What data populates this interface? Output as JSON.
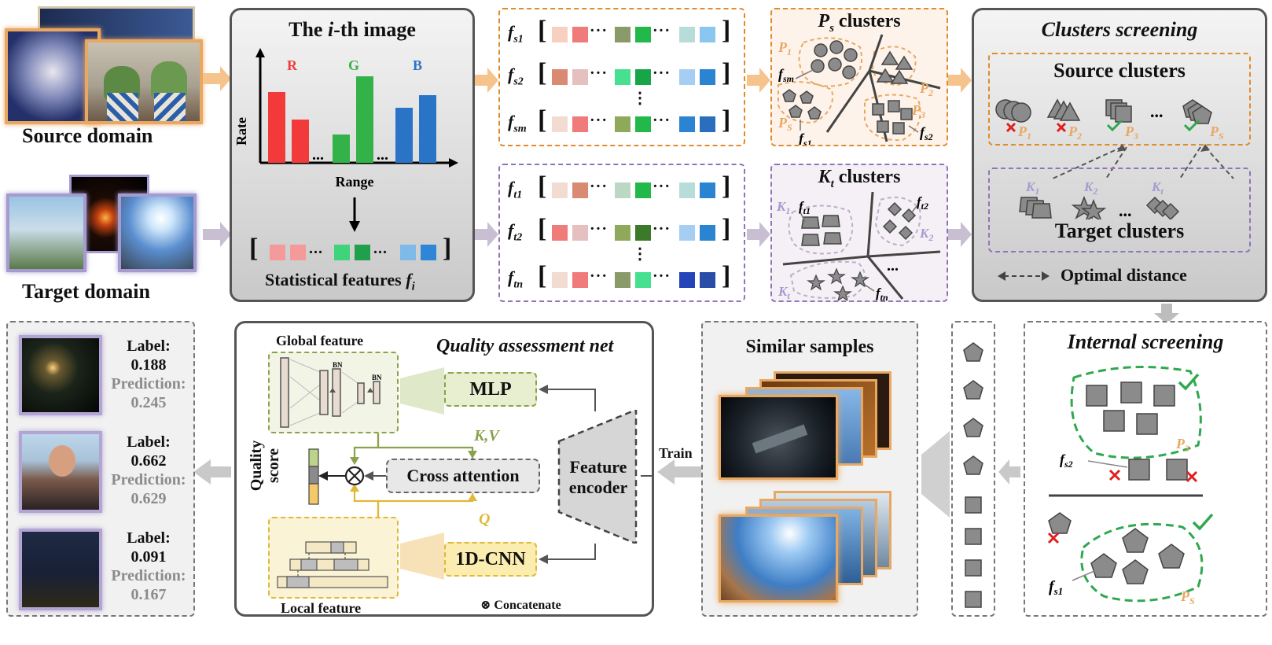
{
  "left": {
    "source_domain": "Source domain",
    "target_domain": "Target domain"
  },
  "histogram_panel": {
    "title_pre": "The ",
    "title_var": "i",
    "title_post": "-th image",
    "axis_y": "Rate",
    "axis_x": "Range",
    "channels": [
      "R",
      "G",
      "B"
    ],
    "dots": "...",
    "stat_label": "Statistical features ",
    "stat_var": "f",
    "stat_sub": "i"
  },
  "source_features": {
    "rows": [
      {
        "label": "f",
        "sub": "s1"
      },
      {
        "label": "f",
        "sub": "s2"
      },
      {
        "label": "f",
        "sub": "sm"
      }
    ],
    "vdots": "⋮"
  },
  "target_features": {
    "rows": [
      {
        "label": "f",
        "sub": "t1"
      },
      {
        "label": "f",
        "sub": "t2"
      },
      {
        "label": "f",
        "sub": "tn"
      }
    ],
    "vdots": "⋮"
  },
  "ps_clusters": {
    "title_var": "P",
    "title_sub": "s",
    "title_post": " clusters",
    "labels": {
      "p1": "P",
      "p1s": "1",
      "p2": "P",
      "p2s": "2",
      "p3": "P",
      "p3s": "3",
      "ps": "P",
      "pss": "S",
      "fsm": "f",
      "fsms": "sm",
      "fs1": "f",
      "fs1s": "s1",
      "fs2": "f",
      "fs2s": "s2"
    }
  },
  "kt_clusters": {
    "title_var": "K",
    "title_sub": "t",
    "title_post": " clusters",
    "labels": {
      "k1": "K",
      "k1s": "1",
      "k2": "K",
      "k2s": "2",
      "kt": "K",
      "kts": "t",
      "ft1": "f",
      "ft1s": "t1",
      "ft2": "f",
      "ft2s": "t2",
      "ftn": "f",
      "ftns": "tn",
      "dots": "..."
    }
  },
  "clusters_screening": {
    "title": "Clusters screening",
    "source_clusters": "Source clusters",
    "target_clusters": "Target clusters",
    "optimal_distance": "Optimal distance",
    "src_labels": [
      {
        "v": "P",
        "s": "1"
      },
      {
        "v": "P",
        "s": "2"
      },
      {
        "v": "P",
        "s": "3"
      },
      {
        "v": "P",
        "s": "S"
      }
    ],
    "tgt_labels": [
      {
        "v": "K",
        "s": "1"
      },
      {
        "v": "K",
        "s": "2"
      },
      {
        "v": "K",
        "s": "t"
      }
    ],
    "dots": "..."
  },
  "internal_screening": {
    "title": "Internal screening",
    "p3": "P",
    "p3s": "3",
    "ps": "P",
    "pss": "S",
    "fs2": "f",
    "fs2s": "s2",
    "fs1": "f",
    "fs1s": "s1"
  },
  "similar_samples": {
    "title": "Similar samples",
    "train": "Train"
  },
  "qa_net": {
    "title": "Quality assessment net",
    "global_feature": "Global feature",
    "local_feature": "Local feature",
    "bn": "BN",
    "mlp": "MLP",
    "cnn": "1D-CNN",
    "cross_attention": "Cross attention",
    "encoder_line1": "Feature",
    "encoder_line2": "encoder",
    "kv": "K,V",
    "q": "Q",
    "quality_line1": "Quality",
    "quality_line2": "score",
    "concat_symbol": "⊗",
    "concat_label": "Concatenate"
  },
  "results": [
    {
      "label_title": "Label:",
      "label_value": "0.188",
      "pred_title": "Prediction:",
      "pred_value": "0.245"
    },
    {
      "label_title": "Label:",
      "label_value": "0.662",
      "pred_title": "Prediction:",
      "pred_value": "0.629"
    },
    {
      "label_title": "Label:",
      "label_value": "0.091",
      "pred_title": "Prediction:",
      "pred_value": "0.167"
    }
  ],
  "colors": {
    "orange": "#e08a2e",
    "purple": "#8f74b8",
    "green_check": "#2fa84f",
    "red_cross": "#e02020",
    "red_bar": "#f23a3a",
    "green_bar": "#33b24a",
    "blue_bar": "#2a74c8"
  }
}
